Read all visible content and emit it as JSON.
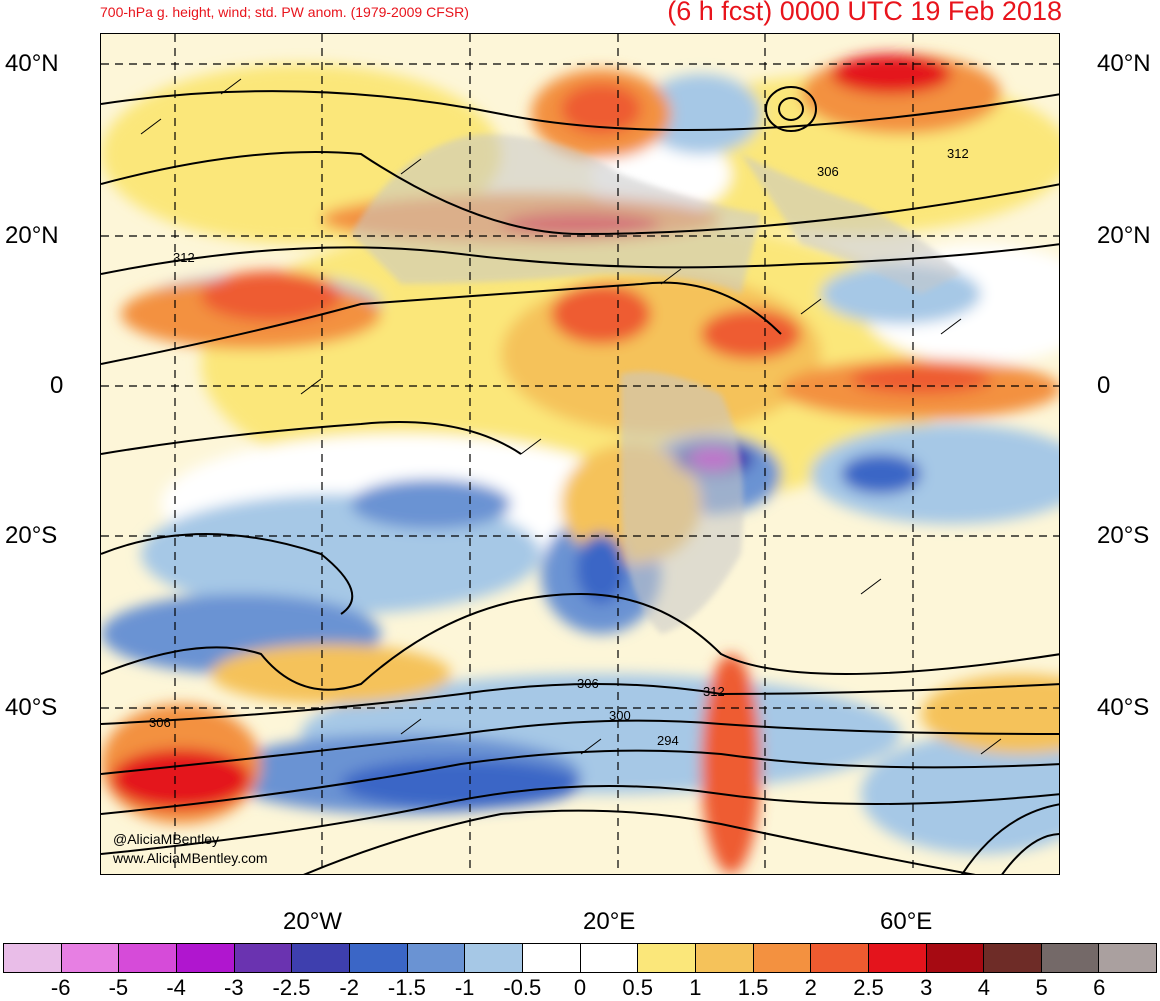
{
  "header": {
    "left_title": "700-hPa g. height, wind; std. PW anom. (1979-2009 CFSR)",
    "right_title": "(6 h fcst) 0000 UTC 19 Feb 2018"
  },
  "map": {
    "lat_labels": [
      "40°N",
      "20°N",
      "0",
      "20°S",
      "40°S"
    ],
    "lon_labels": [
      "20°W",
      "20°E",
      "60°E"
    ],
    "contour_labels": [
      "312",
      "306",
      "312",
      "306",
      "312",
      "306",
      "300",
      "294"
    ],
    "watermark": [
      "@AliciaMBentley",
      "www.AliciaMBentley.com"
    ]
  },
  "colorbar": {
    "labels": [
      "-6",
      "-5",
      "-4",
      "-3",
      "-2.5",
      "-2",
      "-1.5",
      "-1",
      "-0.5",
      "0",
      "0.5",
      "1",
      "1.5",
      "2",
      "2.5",
      "3",
      "4",
      "5",
      "6"
    ],
    "colors": [
      "#e9bde8",
      "#e77fe3",
      "#d64bd9",
      "#b016cf",
      "#6a33b0",
      "#3e3fae",
      "#3b66c6",
      "#6a93d3",
      "#a6c8e6",
      "#ffffff",
      "#ffffff",
      "#fbe77a",
      "#f5c25a",
      "#f39140",
      "#ee5b30",
      "#e4141c",
      "#a60a12",
      "#6e2c27",
      "#746968",
      "#aaa09f"
    ]
  }
}
